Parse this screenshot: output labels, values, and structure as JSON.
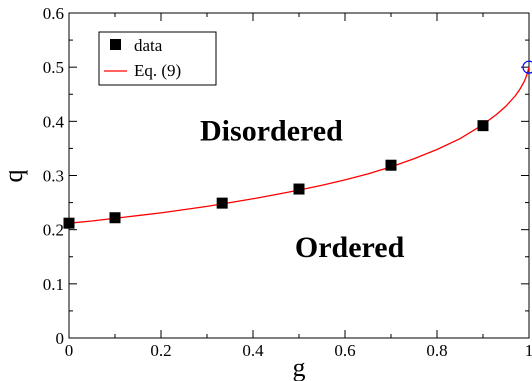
{
  "chart_data": {
    "type": "scatter",
    "xlabel": "g",
    "ylabel": "q",
    "xlim": [
      0,
      1
    ],
    "ylim": [
      0,
      0.6
    ],
    "x_ticks": [
      "0",
      "0.2",
      "0.4",
      "0.6",
      "0.8",
      "1"
    ],
    "y_ticks": [
      "0",
      "0.1",
      "0.2",
      "0.3",
      "0.4",
      "0.5",
      "0.6"
    ],
    "x_tick_values": [
      0,
      0.2,
      0.4,
      0.6,
      0.8,
      1.0
    ],
    "y_tick_values": [
      0,
      0.1,
      0.2,
      0.3,
      0.4,
      0.5,
      0.6
    ],
    "grid": false,
    "legend_position": "top-left",
    "series": [
      {
        "name": "data",
        "kind": "markers",
        "marker": "square",
        "color": "#000000",
        "x": [
          0.0,
          0.1,
          0.333,
          0.5,
          0.7,
          0.9
        ],
        "y": [
          0.212,
          0.222,
          0.249,
          0.275,
          0.319,
          0.392
        ]
      },
      {
        "name": "Eq. (9)",
        "kind": "line",
        "color": "#ff0000",
        "x": [
          0.0,
          0.05,
          0.1,
          0.15,
          0.2,
          0.25,
          0.3,
          0.35,
          0.4,
          0.45,
          0.5,
          0.55,
          0.6,
          0.65,
          0.7,
          0.75,
          0.8,
          0.85,
          0.9,
          0.93,
          0.95,
          0.97,
          0.98,
          0.99,
          0.995,
          1.0
        ],
        "y": [
          0.212,
          0.216,
          0.221,
          0.226,
          0.231,
          0.237,
          0.243,
          0.25,
          0.257,
          0.265,
          0.273,
          0.282,
          0.292,
          0.303,
          0.316,
          0.331,
          0.348,
          0.368,
          0.394,
          0.413,
          0.428,
          0.447,
          0.459,
          0.474,
          0.485,
          0.5
        ]
      },
      {
        "kind": "endpoint",
        "marker": "open-circle",
        "color": "#0000ff",
        "x": [
          1.0
        ],
        "y": [
          0.5
        ]
      }
    ],
    "annotations": [
      {
        "text": "Disordered",
        "x": 0.44,
        "y": 0.365
      },
      {
        "text": "Ordered",
        "x": 0.61,
        "y": 0.15
      }
    ]
  }
}
